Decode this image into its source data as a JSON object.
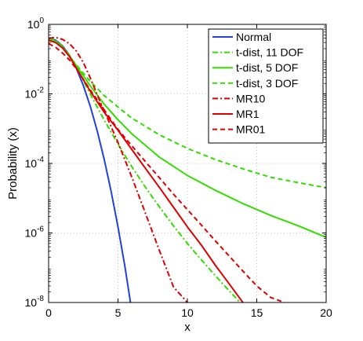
{
  "chart_data": {
    "type": "line",
    "title": "",
    "xlabel": "x",
    "ylabel": "Probability (x)",
    "xlim": [
      0,
      20
    ],
    "ylim": [
      1e-08,
      1
    ],
    "yscale": "log",
    "grid": true,
    "legend_position": "top-right",
    "x_ticks": [
      0,
      5,
      10,
      15,
      20
    ],
    "x_tick_labels": [
      "0",
      "5",
      "10",
      "15",
      "20"
    ],
    "y_ticks": [
      1e-08,
      1e-06,
      0.0001,
      0.01,
      1
    ],
    "y_tick_labels": [
      {
        "base": "10",
        "exp": "-8"
      },
      {
        "base": "10",
        "exp": "-6"
      },
      {
        "base": "10",
        "exp": "-4"
      },
      {
        "base": "10",
        "exp": "-2"
      },
      {
        "base": "10",
        "exp": "0"
      }
    ],
    "series": [
      {
        "name": "Normal",
        "color": "#2040e0",
        "dash": "solid",
        "x": [
          0,
          0.5,
          1,
          1.5,
          2,
          2.5,
          3,
          3.5,
          4,
          4.5,
          5,
          5.5,
          5.9
        ],
        "y": [
          0.399,
          0.352,
          0.242,
          0.13,
          0.054,
          0.0175,
          0.00443,
          0.000873,
          0.000134,
          1.6e-05,
          1.49e-06,
          1.08e-07,
          1e-08
        ]
      },
      {
        "name": "t-dist, 11 DOF",
        "color": "#33dd00",
        "dash": "dashdot",
        "x": [
          0,
          0.5,
          1,
          1.5,
          2,
          3,
          4,
          5,
          6,
          7,
          8,
          9,
          10,
          11,
          12,
          13,
          13.8
        ],
        "y": [
          0.39,
          0.345,
          0.234,
          0.13,
          0.06,
          0.0099,
          0.0018,
          0.00036,
          8e-05,
          2e-05,
          5.5e-06,
          1.6e-06,
          5e-07,
          1.7e-07,
          6e-08,
          2.2e-08,
          1e-08
        ]
      },
      {
        "name": "t-dist, 5 DOF",
        "color": "#33dd00",
        "dash": "solid",
        "x": [
          0,
          0.5,
          1,
          1.5,
          2,
          3,
          4,
          5,
          6,
          8,
          10,
          12,
          14,
          16,
          18,
          20
        ],
        "y": [
          0.38,
          0.33,
          0.22,
          0.125,
          0.065,
          0.017,
          0.0051,
          0.0018,
          0.00071,
          0.00015,
          4.5e-05,
          1.7e-05,
          7e-06,
          3.2e-06,
          1.6e-06,
          7.5e-07
        ]
      },
      {
        "name": "t-dist, 3 DOF",
        "color": "#33dd00",
        "dash": "dashed",
        "x": [
          0,
          0.5,
          1,
          1.5,
          2,
          3,
          4,
          5,
          6,
          8,
          10,
          12,
          14,
          16,
          18,
          20
        ],
        "y": [
          0.37,
          0.31,
          0.21,
          0.12,
          0.068,
          0.023,
          0.009,
          0.0042,
          0.002,
          0.00066,
          0.00027,
          0.00013,
          7e-05,
          4e-05,
          2.8e-05,
          2e-05
        ]
      },
      {
        "name": "MR10",
        "color": "#e00000",
        "dash": "dashdot",
        "x": [
          0,
          0.5,
          1,
          1.5,
          2,
          2.5,
          3,
          3.5,
          4,
          5,
          6,
          7,
          8,
          9,
          10
        ],
        "y": [
          0.4,
          0.42,
          0.37,
          0.28,
          0.17,
          0.08,
          0.029,
          0.0095,
          0.0033,
          0.0004,
          4e-05,
          3.5e-06,
          3e-07,
          2.8e-08,
          1e-08
        ]
      },
      {
        "name": "MR1",
        "color": "#e00000",
        "dash": "solid",
        "x": [
          0,
          0.5,
          1,
          1.5,
          2,
          3,
          4,
          5,
          6,
          7,
          8,
          9,
          10,
          11,
          12,
          13,
          14
        ],
        "y": [
          0.35,
          0.3,
          0.21,
          0.12,
          0.055,
          0.012,
          0.003,
          0.0009,
          0.00025,
          7e-05,
          2e-05,
          5.5e-06,
          1.5e-06,
          4.5e-07,
          1.2e-07,
          3.5e-08,
          1e-08
        ]
      },
      {
        "name": "MR01",
        "color": "#e00000",
        "dash": "dashed",
        "x": [
          0,
          0.5,
          1,
          1.5,
          2,
          3,
          4,
          5,
          6,
          7,
          8,
          9,
          10,
          11,
          12,
          13,
          14,
          15,
          16,
          17
        ],
        "y": [
          0.28,
          0.22,
          0.15,
          0.095,
          0.052,
          0.013,
          0.0035,
          0.00095,
          0.00032,
          0.00011,
          3.8e-05,
          1.3e-05,
          4.7e-06,
          1.7e-06,
          6e-07,
          2.2e-07,
          8e-08,
          3e-08,
          1.4e-08,
          1e-08
        ]
      }
    ]
  }
}
